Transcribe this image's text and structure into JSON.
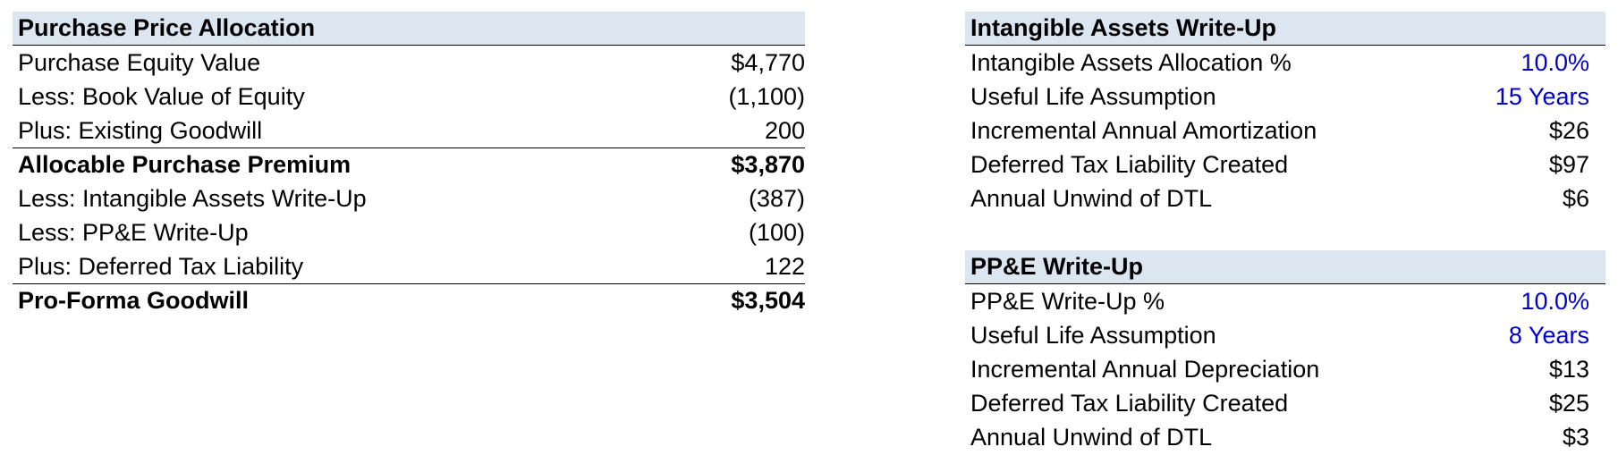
{
  "purchase_price_allocation": {
    "title": "Purchase Price Allocation",
    "rows": [
      {
        "label": "Purchase Equity Value",
        "value": "$4,770"
      },
      {
        "label": "Less: Book Value of Equity",
        "value": "(1,100)"
      },
      {
        "label": "Plus: Existing Goodwill",
        "value": "200"
      },
      {
        "label": "Allocable Purchase Premium",
        "value": "$3,870"
      },
      {
        "label": "Less: Intangible Assets Write-Up",
        "value": "(387)"
      },
      {
        "label": "Less: PP&E Write-Up",
        "value": "(100)"
      },
      {
        "label": "Plus: Deferred Tax Liability",
        "value": "122"
      },
      {
        "label": "Pro-Forma Goodwill",
        "value": "$3,504"
      }
    ]
  },
  "intangible_assets_write_up": {
    "title": "Intangible Assets Write-Up",
    "rows": [
      {
        "label": "Intangible Assets Allocation %",
        "value": "10.0%"
      },
      {
        "label": "Useful Life Assumption",
        "value": "15 Years"
      },
      {
        "label": "Incremental Annual Amortization",
        "value": "$26"
      },
      {
        "label": "Deferred Tax Liability Created",
        "value": "$97"
      },
      {
        "label": "Annual Unwind of DTL",
        "value": "$6"
      }
    ]
  },
  "ppe_write_up": {
    "title": "PP&E Write-Up",
    "rows": [
      {
        "label": "PP&E Write-Up %",
        "value": "10.0%"
      },
      {
        "label": "Useful Life Assumption",
        "value": "8 Years"
      },
      {
        "label": "Incremental Annual Depreciation",
        "value": "$13"
      },
      {
        "label": "Deferred Tax Liability Created",
        "value": "$25"
      },
      {
        "label": "Annual Unwind of DTL",
        "value": "$3"
      }
    ]
  },
  "colors": {
    "header_fill": "#dce6f1",
    "input_blue": "#0000cc"
  }
}
